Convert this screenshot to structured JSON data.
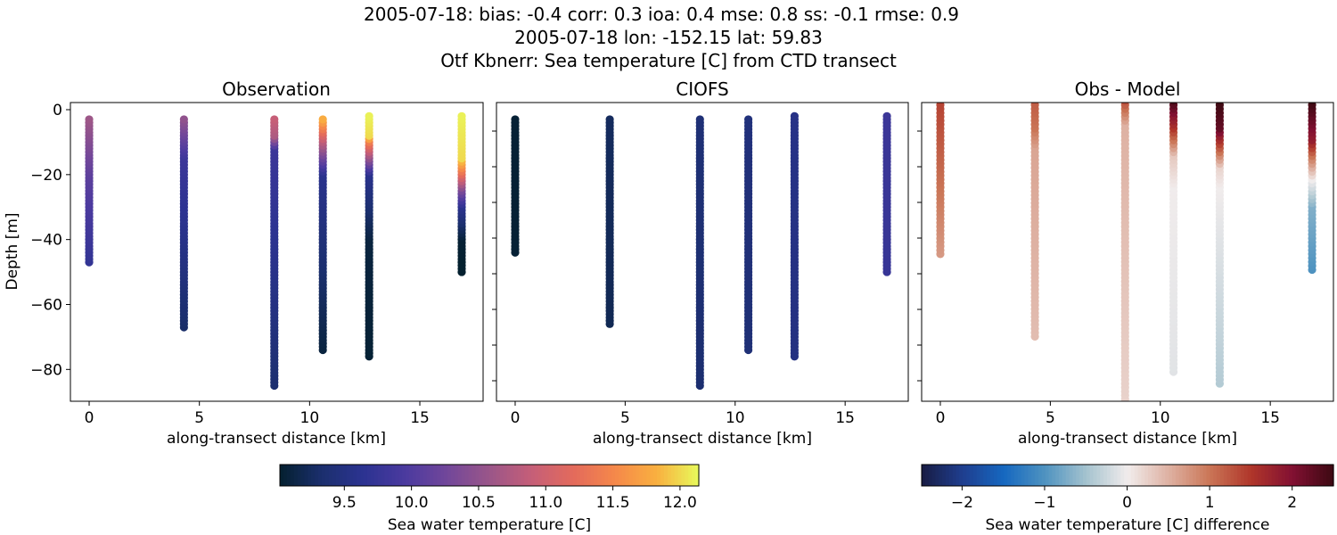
{
  "title_lines": [
    "2005-07-18: bias: -0.4  corr: 0.3  ioa: 0.4  mse: 0.8  ss: -0.1  rmse: 0.9",
    "2005-07-18 lon: -152.15 lat: 59.83",
    "Otf Kbnerr: Sea temperature [C] from CTD transect"
  ],
  "chart_data": [
    {
      "type": "scatter",
      "title": "Observation",
      "xlabel": "along-transect distance [km]",
      "ylabel": "Depth [m]",
      "xlim": [
        -0.85,
        17.87
      ],
      "ylim": [
        -89.8,
        2.2
      ],
      "xticks": [
        0,
        5,
        10,
        15
      ],
      "yticks": [
        0,
        -20,
        -40,
        -60,
        -80
      ],
      "colormap": "thermal",
      "clim": [
        9.02,
        12.14
      ],
      "profiles": [
        {
          "x": 0,
          "top": -3,
          "bottom": -47,
          "values": [
            [
              -3,
              10.6
            ],
            [
              -20,
              10.1
            ],
            [
              -47,
              9.7
            ]
          ]
        },
        {
          "x": 4.3,
          "top": -3,
          "bottom": -67,
          "values": [
            [
              -3,
              10.5
            ],
            [
              -15,
              9.8
            ],
            [
              -67,
              9.3
            ]
          ]
        },
        {
          "x": 8.4,
          "top": -3,
          "bottom": -85,
          "values": [
            [
              -3,
              10.9
            ],
            [
              -8,
              10.7
            ],
            [
              -12,
              9.8
            ],
            [
              -85,
              9.35
            ]
          ]
        },
        {
          "x": 10.6,
          "top": -3,
          "bottom": -74,
          "values": [
            [
              -3,
              11.8
            ],
            [
              -10,
              10.8
            ],
            [
              -20,
              9.6
            ],
            [
              -74,
              9.1
            ]
          ]
        },
        {
          "x": 12.7,
          "top": -2,
          "bottom": -76,
          "values": [
            [
              -2,
              12.1
            ],
            [
              -8,
              12.0
            ],
            [
              -10,
              11.4
            ],
            [
              -20,
              9.6
            ],
            [
              -40,
              9.1
            ],
            [
              -76,
              9.05
            ]
          ]
        },
        {
          "x": 16.9,
          "top": -2,
          "bottom": -50,
          "values": [
            [
              -2,
              12.1
            ],
            [
              -15,
              12.0
            ],
            [
              -20,
              11.2
            ],
            [
              -25,
              10.3
            ],
            [
              -30,
              9.6
            ],
            [
              -40,
              9.05
            ],
            [
              -50,
              9.0
            ]
          ]
        }
      ]
    },
    {
      "type": "scatter",
      "title": "CIOFS",
      "xlabel": "along-transect distance [km]",
      "xlim": [
        -0.85,
        17.87
      ],
      "ylim": [
        -89.8,
        2.2
      ],
      "xticks": [
        0,
        5,
        10,
        15
      ],
      "colormap": "thermal",
      "clim": [
        9.02,
        12.14
      ],
      "profiles": [
        {
          "x": 0,
          "top": -3,
          "bottom": -44,
          "values": [
            [
              -3,
              9.05
            ],
            [
              -44,
              9.05
            ]
          ]
        },
        {
          "x": 4.3,
          "top": -3,
          "bottom": -66,
          "values": [
            [
              -3,
              9.25
            ],
            [
              -66,
              9.2
            ]
          ]
        },
        {
          "x": 8.4,
          "top": -3,
          "bottom": -85,
          "values": [
            [
              -3,
              9.4
            ],
            [
              -85,
              9.35
            ]
          ]
        },
        {
          "x": 10.6,
          "top": -3,
          "bottom": -74,
          "values": [
            [
              -3,
              9.45
            ],
            [
              -74,
              9.4
            ]
          ]
        },
        {
          "x": 12.7,
          "top": -2,
          "bottom": -76,
          "values": [
            [
              -2,
              9.55
            ],
            [
              -76,
              9.5
            ]
          ]
        },
        {
          "x": 16.9,
          "top": -2,
          "bottom": -50,
          "values": [
            [
              -2,
              9.8
            ],
            [
              -50,
              9.75
            ]
          ]
        }
      ]
    },
    {
      "type": "scatter",
      "title": "Obs - Model",
      "xlabel": "along-transect distance [km]",
      "xlim": [
        -0.85,
        17.87
      ],
      "ylim": [
        -84.5,
        -8.4
      ],
      "xticks": [
        0,
        5,
        10,
        15
      ],
      "colormap": "balance",
      "clim": [
        -2.49,
        2.5
      ],
      "profiles": [
        {
          "x": 0,
          "top": -8,
          "bottom": -47,
          "values": [
            [
              -8,
              1.4
            ],
            [
              -47,
              0.7
            ]
          ]
        },
        {
          "x": 4.3,
          "top": -8,
          "bottom": -68,
          "values": [
            [
              -8,
              1.2
            ],
            [
              -15,
              1.0
            ],
            [
              -20,
              0.6
            ],
            [
              -68,
              0.4
            ]
          ]
        },
        {
          "x": 8.4,
          "top": -8,
          "bottom": -90,
          "values": [
            [
              -8,
              1.3
            ],
            [
              -14,
              0.5
            ],
            [
              -90,
              0.2
            ]
          ]
        },
        {
          "x": 10.6,
          "top": -8,
          "bottom": -77,
          "values": [
            [
              -8,
              2.4
            ],
            [
              -15,
              1.5
            ],
            [
              -22,
              0.3
            ],
            [
              -30,
              0.0
            ],
            [
              -77,
              -0.1
            ]
          ]
        },
        {
          "x": 12.7,
          "top": -8,
          "bottom": -80,
          "values": [
            [
              -8,
              2.5
            ],
            [
              -15,
              2.2
            ],
            [
              -20,
              1.2
            ],
            [
              -25,
              0.2
            ],
            [
              -30,
              0.0
            ],
            [
              -80,
              -0.4
            ]
          ]
        },
        {
          "x": 16.9,
          "top": -8,
          "bottom": -51,
          "values": [
            [
              -8,
              2.5
            ],
            [
              -18,
              1.8
            ],
            [
              -22,
              1.0
            ],
            [
              -28,
              0.0
            ],
            [
              -35,
              -0.7
            ],
            [
              -51,
              -1.0
            ]
          ]
        }
      ]
    }
  ],
  "colorbars": [
    {
      "label": "Sea water temperature [C]",
      "colormap": "thermal",
      "range": [
        9.02,
        12.14
      ],
      "ticks": [
        "9.5",
        "10.0",
        "10.5",
        "11.0",
        "11.5",
        "12.0"
      ]
    },
    {
      "label": "Sea water temperature [C] difference",
      "colormap": "balance",
      "range": [
        -2.49,
        2.5
      ],
      "ticks": [
        "−2",
        "−1",
        "0",
        "1",
        "2"
      ]
    }
  ],
  "colormaps": {
    "thermal": [
      "#04202f",
      "#1b2f6e",
      "#2c3391",
      "#4b3a9f",
      "#72479a",
      "#9a5689",
      "#c55e78",
      "#e36a5c",
      "#f5884a",
      "#f9b040",
      "#e8fa5b"
    ],
    "balance": [
      "#181c43",
      "#1f3e8f",
      "#1668c0",
      "#4f93c0",
      "#a5c3cf",
      "#f1ecec",
      "#deb1a2",
      "#ca7556",
      "#b0362a",
      "#821032",
      "#3c0912"
    ]
  }
}
